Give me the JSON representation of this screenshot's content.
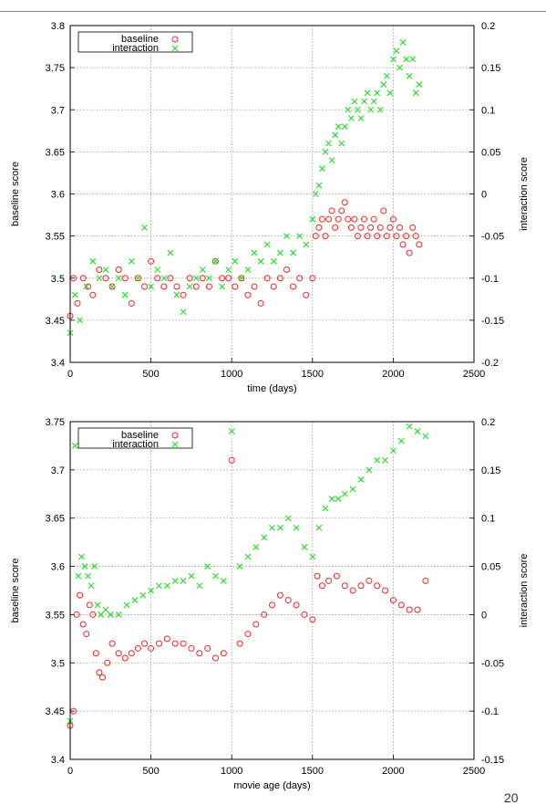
{
  "colors": {
    "baseline": "#ff2020",
    "interaction": "#20e020",
    "grid": "#9a9a9a"
  },
  "page_number": "20",
  "chart_data": [
    {
      "type": "scatter",
      "xlabel": "time (days)",
      "ylabel": "baseline score",
      "y2label": "interaction score",
      "xlim": [
        0,
        2500
      ],
      "ylim": [
        3.4,
        3.8
      ],
      "y2lim": [
        -0.2,
        0.2
      ],
      "xticks": [
        "0",
        "500",
        "1000",
        "1500",
        "2000",
        "2500"
      ],
      "yticks": [
        "3.4",
        "3.45",
        "3.5",
        "3.55",
        "3.6",
        "3.65",
        "3.7",
        "3.75",
        "3.8"
      ],
      "y2ticks": [
        "-0.2",
        "-0.15",
        "-0.1",
        "-0.05",
        "0",
        "0.05",
        "0.1",
        "0.15",
        "0.2"
      ],
      "grid": true,
      "legend": "top-left",
      "series": [
        {
          "name": "baseline",
          "marker": "circle",
          "axis": "left",
          "x": [
            0,
            20,
            45,
            80,
            110,
            140,
            180,
            220,
            260,
            300,
            340,
            380,
            420,
            460,
            500,
            540,
            580,
            620,
            660,
            700,
            740,
            780,
            820,
            860,
            900,
            940,
            980,
            1020,
            1060,
            1100,
            1140,
            1180,
            1220,
            1260,
            1300,
            1340,
            1380,
            1420,
            1460,
            1500,
            1520,
            1540,
            1560,
            1580,
            1600,
            1620,
            1640,
            1660,
            1680,
            1700,
            1720,
            1740,
            1760,
            1780,
            1800,
            1820,
            1840,
            1860,
            1880,
            1900,
            1920,
            1940,
            1960,
            1980,
            2000,
            2020,
            2040,
            2060,
            2080,
            2100,
            2120,
            2140,
            2160
          ],
          "y": [
            3.455,
            3.5,
            3.47,
            3.5,
            3.49,
            3.48,
            3.51,
            3.5,
            3.49,
            3.51,
            3.5,
            3.47,
            3.5,
            3.49,
            3.52,
            3.5,
            3.49,
            3.5,
            3.49,
            3.48,
            3.5,
            3.49,
            3.5,
            3.49,
            3.52,
            3.5,
            3.5,
            3.49,
            3.5,
            3.48,
            3.49,
            3.47,
            3.5,
            3.49,
            3.5,
            3.51,
            3.49,
            3.5,
            3.48,
            3.5,
            3.55,
            3.56,
            3.57,
            3.55,
            3.57,
            3.58,
            3.56,
            3.57,
            3.58,
            3.59,
            3.57,
            3.56,
            3.57,
            3.55,
            3.56,
            3.57,
            3.55,
            3.56,
            3.57,
            3.55,
            3.56,
            3.58,
            3.55,
            3.56,
            3.57,
            3.55,
            3.56,
            3.54,
            3.55,
            3.53,
            3.56,
            3.55,
            3.54
          ]
        },
        {
          "name": "interaction",
          "marker": "cross",
          "axis": "right",
          "x": [
            0,
            30,
            60,
            100,
            140,
            180,
            220,
            260,
            300,
            340,
            380,
            420,
            460,
            500,
            540,
            580,
            620,
            660,
            700,
            740,
            780,
            820,
            860,
            900,
            940,
            980,
            1020,
            1060,
            1100,
            1140,
            1180,
            1220,
            1260,
            1300,
            1340,
            1380,
            1420,
            1460,
            1500,
            1520,
            1540,
            1560,
            1580,
            1600,
            1620,
            1640,
            1660,
            1680,
            1700,
            1720,
            1740,
            1760,
            1780,
            1800,
            1820,
            1840,
            1860,
            1880,
            1900,
            1920,
            1940,
            1960,
            1980,
            2000,
            2020,
            2040,
            2060,
            2080,
            2100,
            2120,
            2140,
            2160
          ],
          "y": [
            -0.165,
            -0.12,
            -0.15,
            -0.11,
            -0.08,
            -0.1,
            -0.09,
            -0.11,
            -0.1,
            -0.12,
            -0.08,
            -0.1,
            -0.04,
            -0.11,
            -0.09,
            -0.1,
            -0.07,
            -0.12,
            -0.14,
            -0.11,
            -0.1,
            -0.09,
            -0.1,
            -0.08,
            -0.11,
            -0.09,
            -0.08,
            -0.1,
            -0.09,
            -0.07,
            -0.08,
            -0.06,
            -0.08,
            -0.07,
            -0.05,
            -0.07,
            -0.05,
            -0.06,
            -0.03,
            0.0,
            0.01,
            0.03,
            0.05,
            0.06,
            0.04,
            0.07,
            0.08,
            0.06,
            0.08,
            0.1,
            0.09,
            0.11,
            0.1,
            0.09,
            0.11,
            0.12,
            0.1,
            0.11,
            0.12,
            0.1,
            0.13,
            0.14,
            0.12,
            0.16,
            0.17,
            0.15,
            0.18,
            0.16,
            0.14,
            0.16,
            0.12,
            0.13
          ]
        }
      ]
    },
    {
      "type": "scatter",
      "xlabel": "movie age (days)",
      "ylabel": "baseline score",
      "y2label": "interaction score",
      "xlim": [
        0,
        2500
      ],
      "ylim": [
        3.4,
        3.75
      ],
      "y2lim": [
        -0.15,
        0.2
      ],
      "xticks": [
        "0",
        "500",
        "1000",
        "1500",
        "2000",
        "2500"
      ],
      "yticks": [
        "3.4",
        "3.45",
        "3.5",
        "3.55",
        "3.6",
        "3.65",
        "3.7",
        "3.75"
      ],
      "y2ticks": [
        "-0.15",
        "-0.1",
        "-0.05",
        "0",
        "0.05",
        "0.1",
        "0.15",
        "0.2"
      ],
      "grid": true,
      "legend": "top-left",
      "series": [
        {
          "name": "baseline",
          "marker": "circle",
          "axis": "left",
          "x": [
            0,
            20,
            40,
            60,
            80,
            100,
            120,
            140,
            160,
            180,
            200,
            230,
            260,
            300,
            340,
            380,
            420,
            460,
            500,
            550,
            600,
            650,
            700,
            750,
            800,
            850,
            900,
            950,
            1000,
            1050,
            1100,
            1150,
            1200,
            1250,
            1300,
            1350,
            1400,
            1450,
            1500,
            1530,
            1560,
            1600,
            1650,
            1700,
            1750,
            1800,
            1850,
            1900,
            1950,
            2000,
            2050,
            2100,
            2150,
            2200
          ],
          "y": [
            3.435,
            3.45,
            3.55,
            3.57,
            3.54,
            3.53,
            3.56,
            3.55,
            3.51,
            3.49,
            3.485,
            3.5,
            3.52,
            3.51,
            3.505,
            3.51,
            3.515,
            3.52,
            3.515,
            3.52,
            3.525,
            3.52,
            3.52,
            3.515,
            3.51,
            3.515,
            3.505,
            3.51,
            3.71,
            3.52,
            3.53,
            3.54,
            3.55,
            3.56,
            3.57,
            3.565,
            3.56,
            3.55,
            3.545,
            3.59,
            3.58,
            3.585,
            3.59,
            3.58,
            3.575,
            3.58,
            3.585,
            3.58,
            3.575,
            3.565,
            3.56,
            3.555,
            3.555,
            3.585
          ]
        },
        {
          "name": "interaction",
          "marker": "cross",
          "axis": "right",
          "x": [
            0,
            30,
            50,
            70,
            90,
            110,
            130,
            150,
            170,
            190,
            220,
            250,
            300,
            350,
            400,
            450,
            500,
            550,
            600,
            650,
            700,
            750,
            800,
            850,
            900,
            950,
            1000,
            1050,
            1100,
            1150,
            1200,
            1250,
            1300,
            1350,
            1400,
            1450,
            1500,
            1540,
            1580,
            1620,
            1660,
            1700,
            1750,
            1800,
            1850,
            1900,
            1950,
            2000,
            2050,
            2100,
            2150,
            2200
          ],
          "y": [
            -0.11,
            0.175,
            0.04,
            0.06,
            0.05,
            0.04,
            0.03,
            0.05,
            0.01,
            0.0,
            0.005,
            0.0,
            0.0,
            0.01,
            0.015,
            0.02,
            0.025,
            0.03,
            0.03,
            0.035,
            0.035,
            0.04,
            0.03,
            0.05,
            0.04,
            0.035,
            0.19,
            0.05,
            0.06,
            0.07,
            0.08,
            0.09,
            0.09,
            0.1,
            0.09,
            0.07,
            0.06,
            0.09,
            0.11,
            0.12,
            0.12,
            0.125,
            0.13,
            0.14,
            0.15,
            0.16,
            0.16,
            0.17,
            0.18,
            0.195,
            0.19,
            0.185
          ]
        }
      ]
    }
  ]
}
